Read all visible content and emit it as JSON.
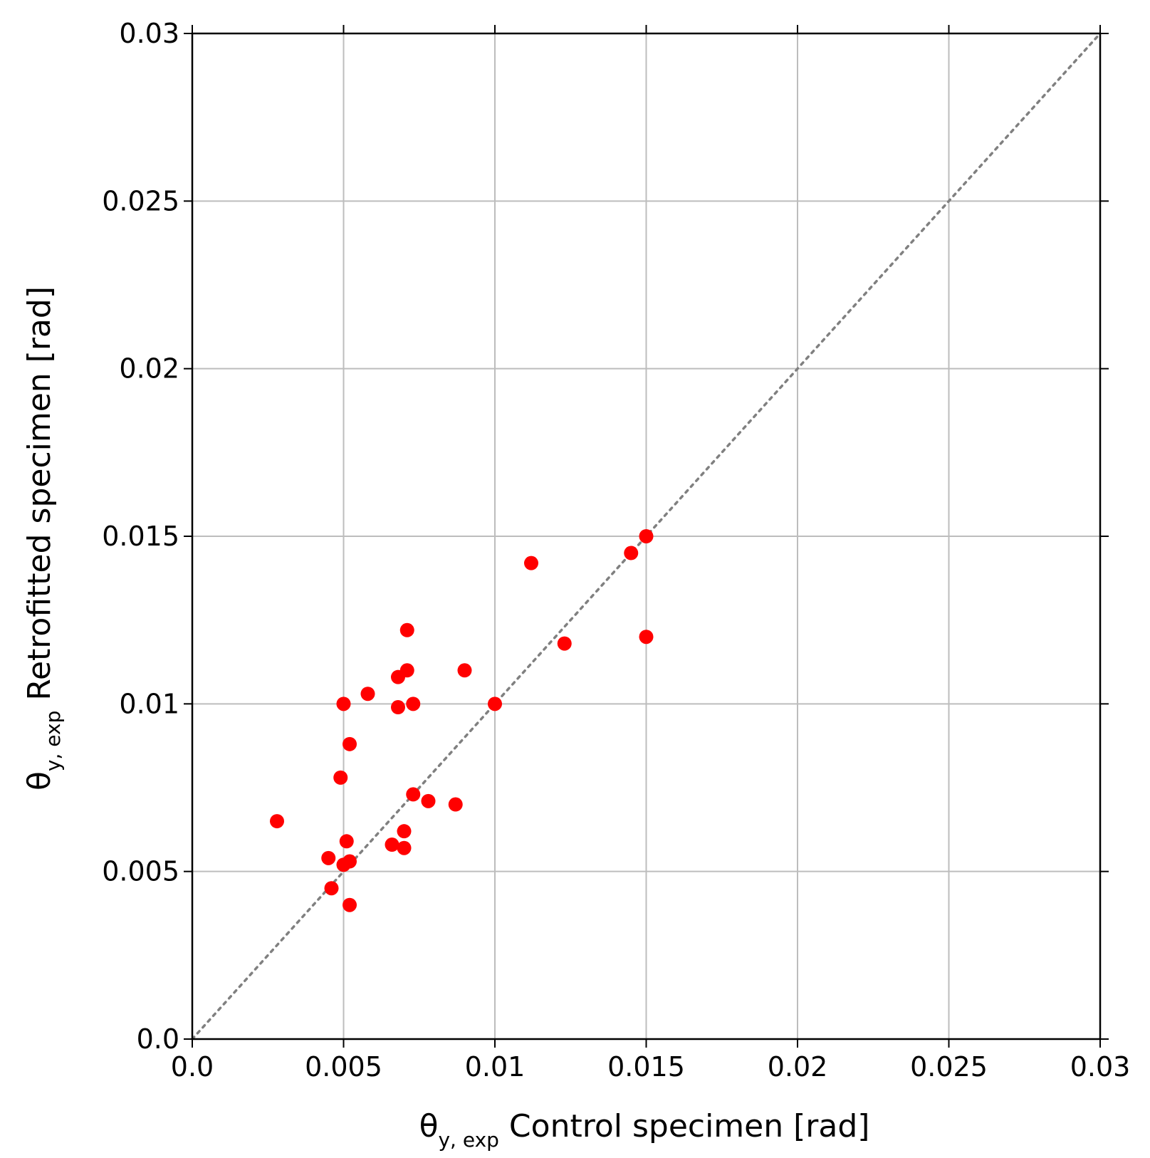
{
  "chart_data": {
    "type": "scatter",
    "title": "",
    "xlabel": {
      "symbol": "θ",
      "sub": "y, exp",
      "text": " Control specimen [rad]"
    },
    "ylabel": {
      "symbol": "θ",
      "sub": "y, exp",
      "text": " Retrofitted specimen [rad]"
    },
    "xlim": [
      0.0,
      0.03
    ],
    "ylim": [
      0.0,
      0.03
    ],
    "x_ticks": [
      0.0,
      0.005,
      0.01,
      0.015,
      0.02,
      0.025,
      0.03
    ],
    "x_tick_labels": [
      "0.0",
      "0.005",
      "0.01",
      "0.015",
      "0.02",
      "0.025",
      "0.03"
    ],
    "y_ticks": [
      0.0,
      0.005,
      0.01,
      0.015,
      0.02,
      0.025,
      0.03
    ],
    "y_tick_labels": [
      "0.0",
      "0.005",
      "0.01",
      "0.015",
      "0.02",
      "0.025",
      "0.03"
    ],
    "grid": true,
    "reference_line": {
      "style": "dotted",
      "color": "#808080",
      "from": [
        0.0,
        0.0
      ],
      "to": [
        0.03,
        0.03
      ]
    },
    "marker_color": "#ff0000",
    "points": [
      {
        "x": 0.0028,
        "y": 0.0065
      },
      {
        "x": 0.0045,
        "y": 0.0054
      },
      {
        "x": 0.0046,
        "y": 0.0045
      },
      {
        "x": 0.0049,
        "y": 0.0078
      },
      {
        "x": 0.005,
        "y": 0.01
      },
      {
        "x": 0.005,
        "y": 0.0052
      },
      {
        "x": 0.0051,
        "y": 0.0059
      },
      {
        "x": 0.0052,
        "y": 0.0088
      },
      {
        "x": 0.0052,
        "y": 0.0053
      },
      {
        "x": 0.0052,
        "y": 0.004
      },
      {
        "x": 0.0058,
        "y": 0.0103
      },
      {
        "x": 0.0066,
        "y": 0.0058
      },
      {
        "x": 0.0068,
        "y": 0.0108
      },
      {
        "x": 0.0068,
        "y": 0.0099
      },
      {
        "x": 0.007,
        "y": 0.0062
      },
      {
        "x": 0.007,
        "y": 0.0057
      },
      {
        "x": 0.0071,
        "y": 0.0122
      },
      {
        "x": 0.0071,
        "y": 0.011
      },
      {
        "x": 0.0073,
        "y": 0.01
      },
      {
        "x": 0.0073,
        "y": 0.0073
      },
      {
        "x": 0.0078,
        "y": 0.0071
      },
      {
        "x": 0.0087,
        "y": 0.007
      },
      {
        "x": 0.009,
        "y": 0.011
      },
      {
        "x": 0.01,
        "y": 0.01
      },
      {
        "x": 0.0112,
        "y": 0.0142
      },
      {
        "x": 0.0123,
        "y": 0.0118
      },
      {
        "x": 0.0145,
        "y": 0.0145
      },
      {
        "x": 0.015,
        "y": 0.015
      },
      {
        "x": 0.015,
        "y": 0.012
      }
    ]
  }
}
